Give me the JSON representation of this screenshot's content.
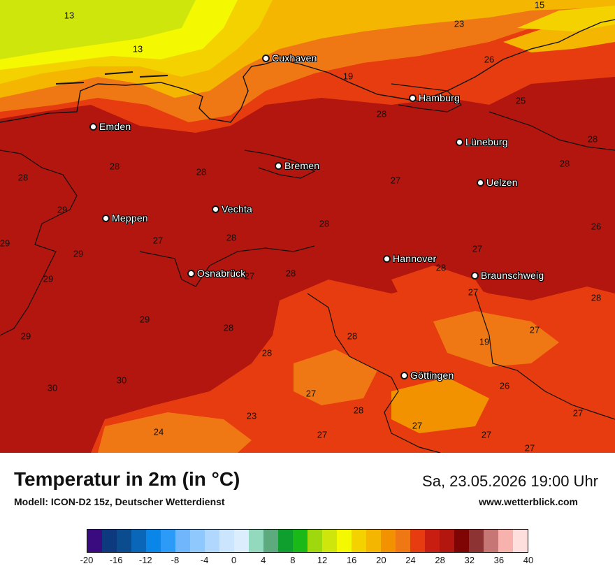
{
  "map": {
    "cities": [
      {
        "name": "Cuxhaven"
      },
      {
        "name": "Hamburg"
      },
      {
        "name": "Emden"
      },
      {
        "name": "Lüneburg"
      },
      {
        "name": "Bremen"
      },
      {
        "name": "Uelzen"
      },
      {
        "name": "Vechta"
      },
      {
        "name": "Meppen"
      },
      {
        "name": "Hannover"
      },
      {
        "name": "Osnabrück"
      },
      {
        "name": "Braunschweig"
      },
      {
        "name": "Göttingen"
      }
    ],
    "value_labels": [
      "13",
      "13",
      "15",
      "23",
      "26",
      "19",
      "25",
      "28",
      "28",
      "28",
      "28",
      "28",
      "27",
      "28",
      "29",
      "28",
      "27",
      "28",
      "26",
      "29",
      "29",
      "28",
      "27",
      "29",
      "27",
      "29",
      "28",
      "27",
      "28",
      "29",
      "28",
      "27",
      "28",
      "19",
      "28",
      "30",
      "30",
      "27",
      "26",
      "27",
      "28",
      "23",
      "24",
      "27",
      "27",
      "27",
      "27"
    ]
  },
  "footer": {
    "title": "Temperatur in 2m (in °C)",
    "model": "Modell: ICON-D2 15z, Deutscher Wetterdienst",
    "datetime": "Sa, 23.05.2026 19:00 Uhr",
    "website": "www.wetterblick.com"
  },
  "legend": {
    "colors": [
      "#3a0b7f",
      "#0d3a7e",
      "#0b4c8f",
      "#0a66b8",
      "#0a86e8",
      "#2b9bf7",
      "#70b6fc",
      "#8ec8fd",
      "#b0d8fe",
      "#cce5fe",
      "#dcedfe",
      "#93d9be",
      "#5caa7e",
      "#0f9f2f",
      "#1bb917",
      "#9fd80d",
      "#cfe60c",
      "#f4f800",
      "#f4d200",
      "#f4b600",
      "#f39200",
      "#f07814",
      "#e63c0f",
      "#c81e12",
      "#b3150f",
      "#7f0505",
      "#8e3333",
      "#c77676",
      "#f7b2ae",
      "#ffdede"
    ],
    "tick_labels": [
      "-20",
      "-16",
      "-12",
      "-8",
      "-4",
      "0",
      "4",
      "8",
      "12",
      "16",
      "20",
      "24",
      "28",
      "32",
      "36",
      "40"
    ]
  }
}
